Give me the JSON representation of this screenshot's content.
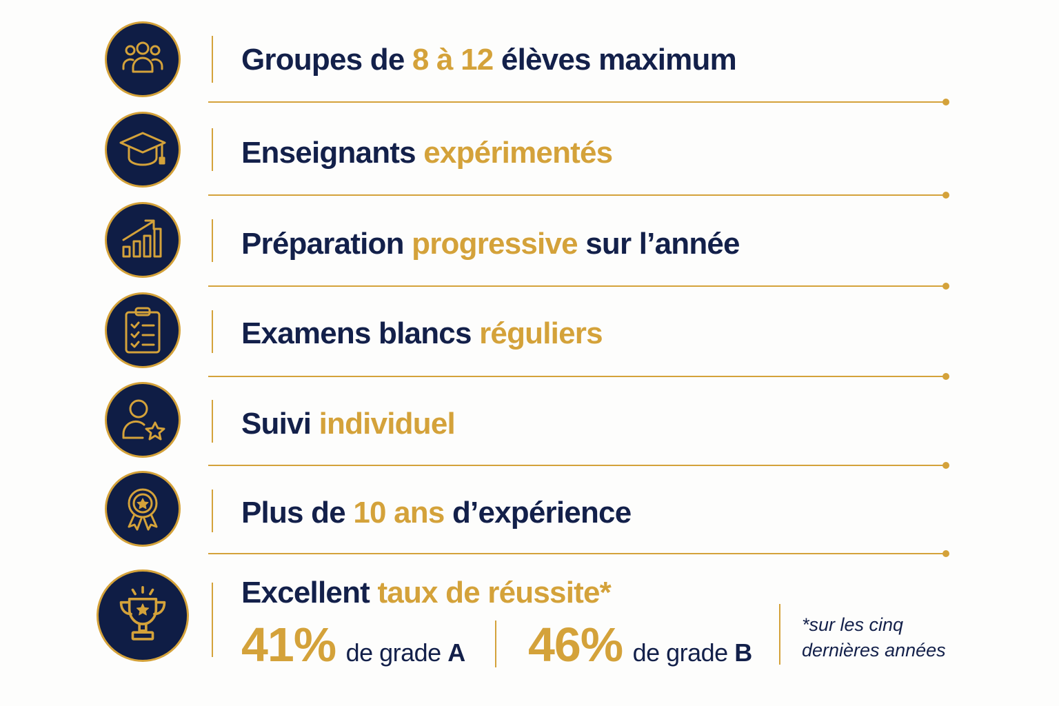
{
  "colors": {
    "navy": "#0f1d45",
    "gold": "#d4a23a",
    "text": "#13204a"
  },
  "features": [
    {
      "icon": "group-icon",
      "parts": [
        "Groupes de ",
        "8 à 12",
        " élèves maximum"
      ]
    },
    {
      "icon": "graduation-cap-icon",
      "parts": [
        "Enseignants ",
        "expérimentés",
        ""
      ]
    },
    {
      "icon": "growth-chart-icon",
      "parts": [
        "Préparation ",
        "progressive",
        " sur l’année"
      ]
    },
    {
      "icon": "clipboard-checklist-icon",
      "parts": [
        "Examens blancs ",
        "réguliers",
        ""
      ]
    },
    {
      "icon": "user-star-icon",
      "parts": [
        "Suivi ",
        "individuel",
        ""
      ]
    },
    {
      "icon": "award-badge-icon",
      "parts": [
        "Plus de ",
        "10 ans",
        " d’expérience"
      ]
    }
  ],
  "success": {
    "icon": "trophy-icon",
    "title_main": "Excellent ",
    "title_gold": "taux de réussite*",
    "stats": [
      {
        "value": "41%",
        "label": "de grade ",
        "grade": "A"
      },
      {
        "value": "46%",
        "label": "de grade ",
        "grade": "B"
      }
    ],
    "footnote_line1": "*sur les cinq",
    "footnote_line2": "dernières années"
  }
}
